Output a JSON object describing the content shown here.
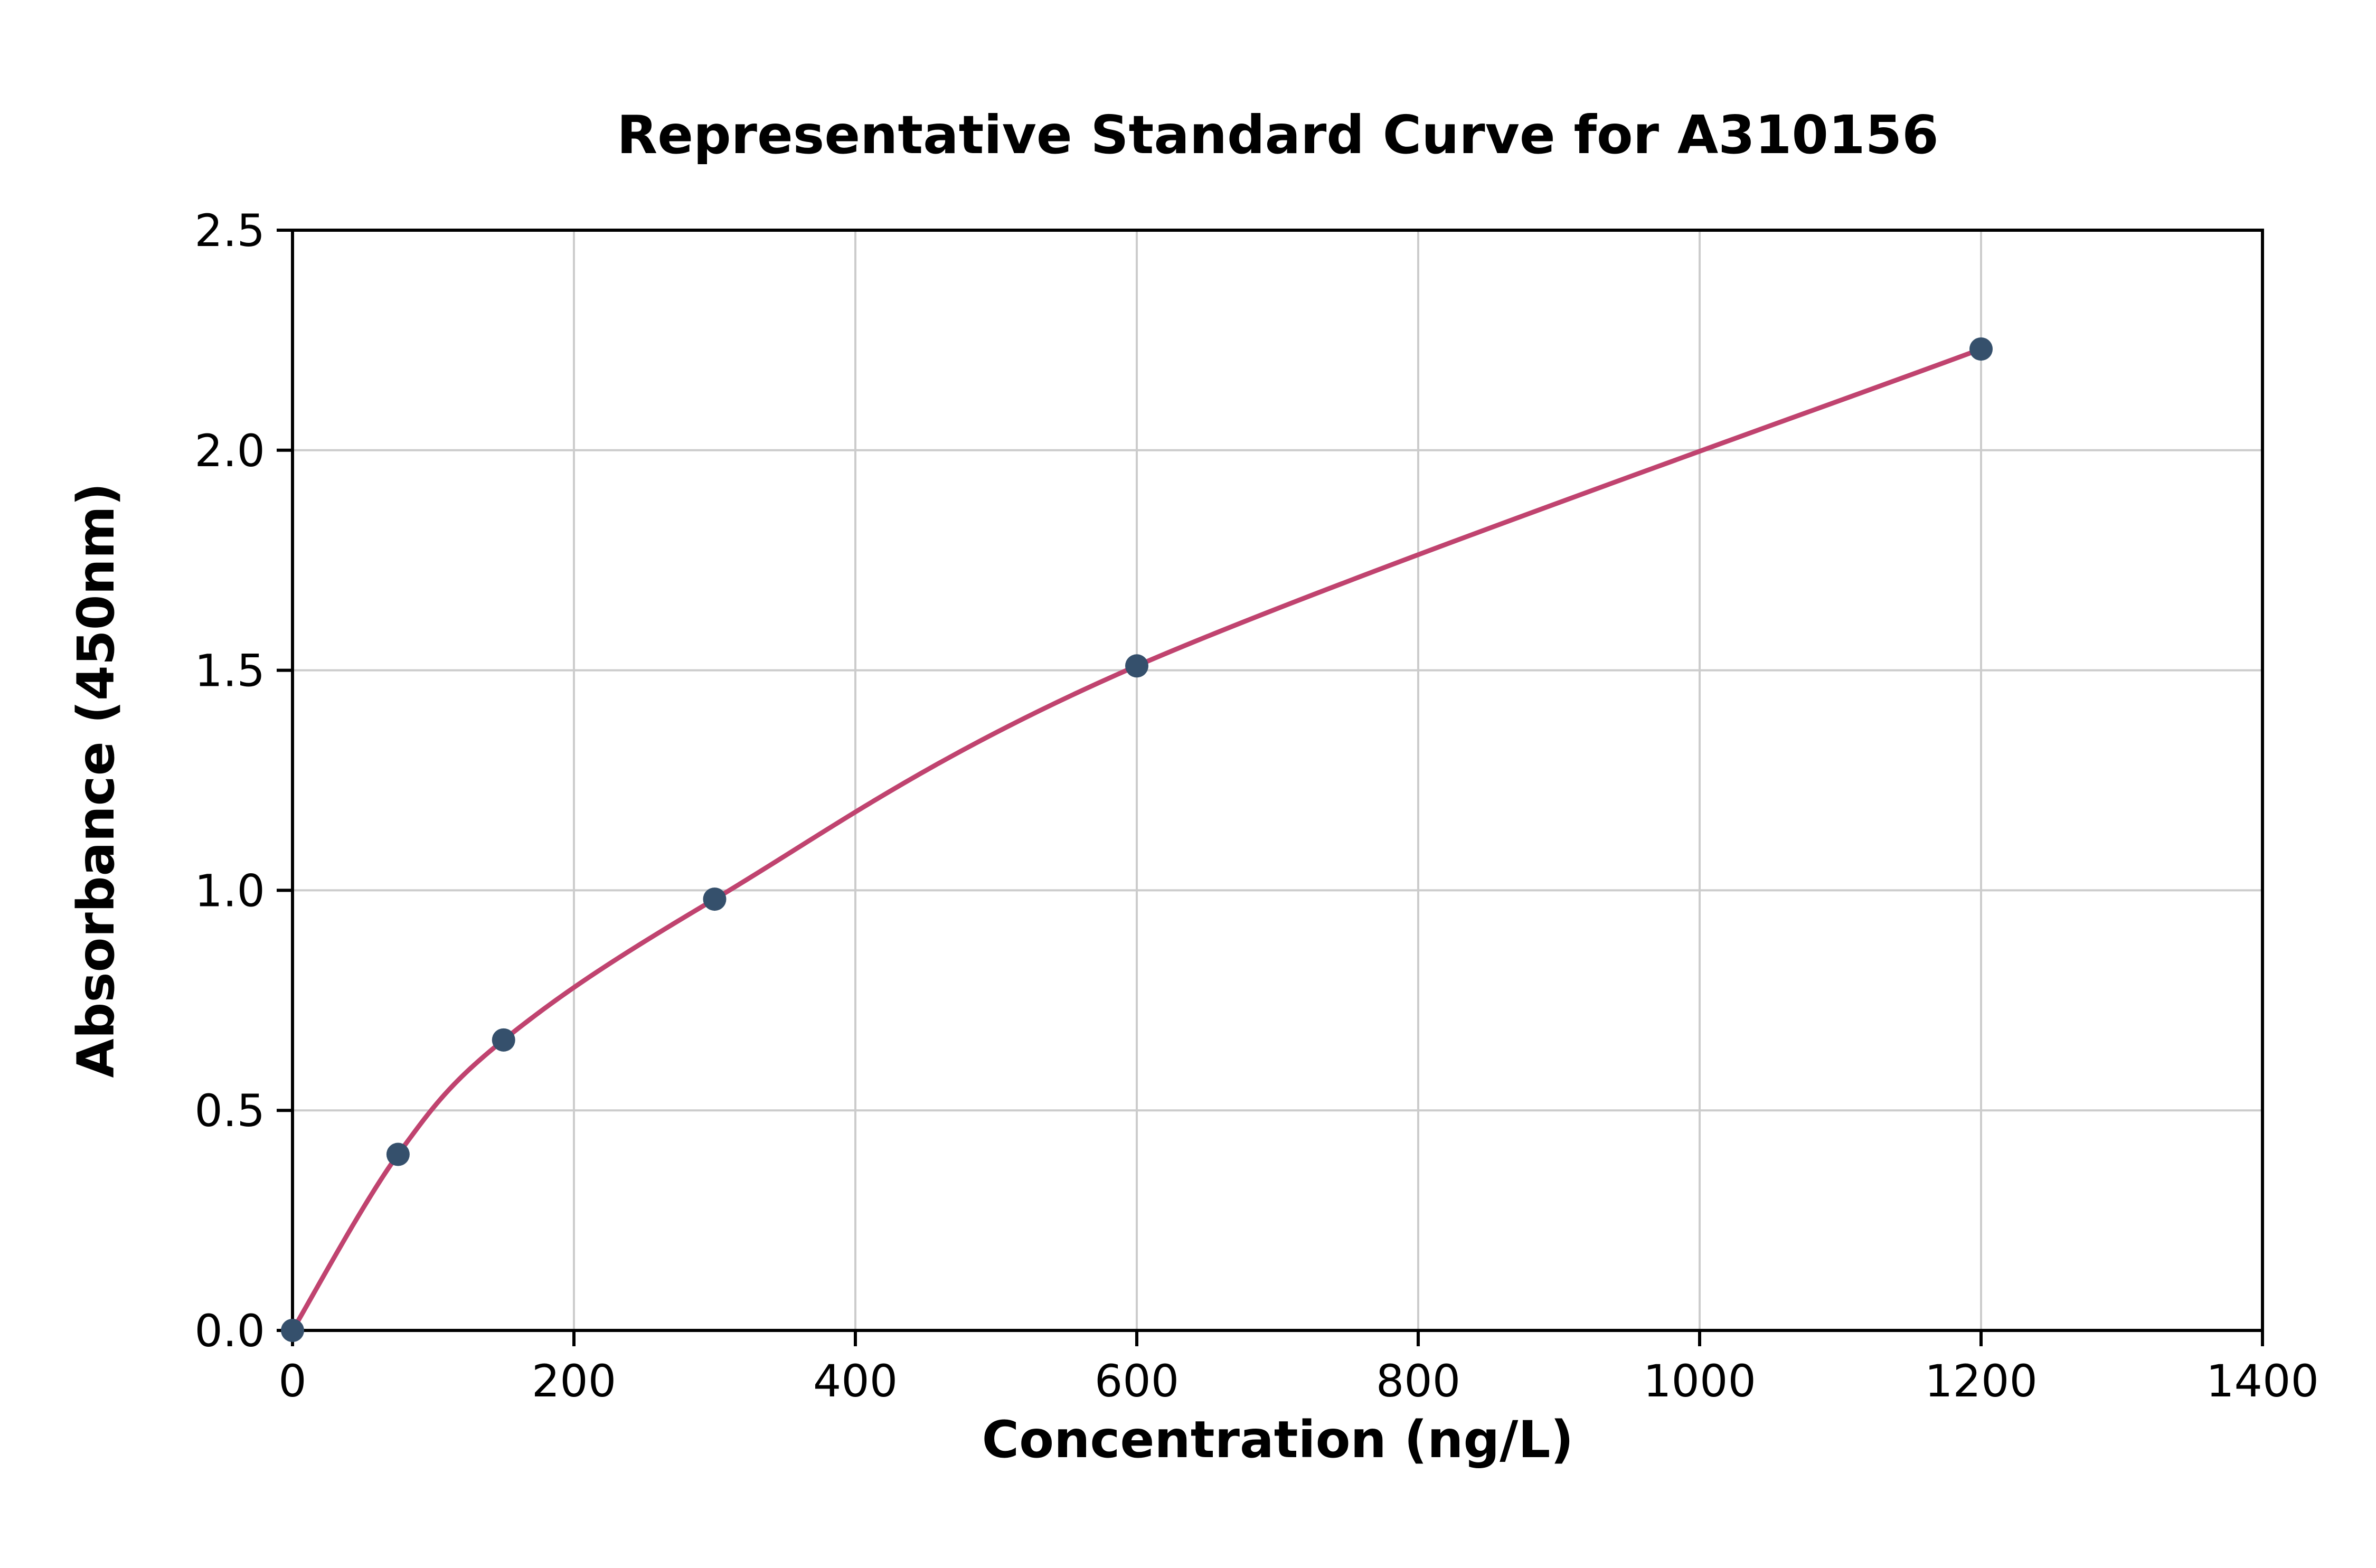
{
  "chart_data": {
    "type": "line",
    "title": "Representative Standard Curve for A310156",
    "xlabel": "Concentration (ng/L)",
    "ylabel": "Absorbance (450nm)",
    "xlim": [
      0,
      1400
    ],
    "ylim": [
      0,
      2.5
    ],
    "xticks": [
      0,
      200,
      400,
      600,
      800,
      1000,
      1200,
      1400
    ],
    "yticks": [
      0.0,
      0.5,
      1.0,
      1.5,
      2.0,
      2.5
    ],
    "grid": true,
    "legend": "none",
    "points": [
      {
        "x": 0,
        "y": 0.0
      },
      {
        "x": 75,
        "y": 0.4
      },
      {
        "x": 150,
        "y": 0.66
      },
      {
        "x": 300,
        "y": 0.98
      },
      {
        "x": 600,
        "y": 1.51
      },
      {
        "x": 1200,
        "y": 2.23
      }
    ],
    "colors": {
      "curve": "#c0436f",
      "point": "#35506c",
      "grid": "#cccccc",
      "axis": "#000000",
      "background": "#ffffff"
    }
  }
}
